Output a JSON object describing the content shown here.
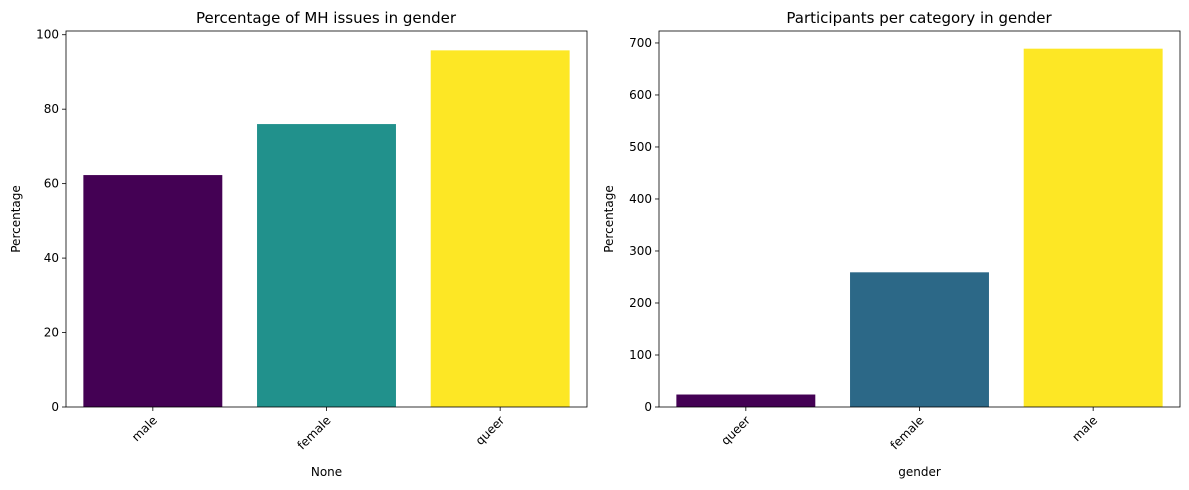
{
  "chart_data": [
    {
      "type": "bar",
      "title": "Percentage of MH issues in gender",
      "xlabel": "None",
      "ylabel": "Percentage",
      "categories": [
        "male",
        "female",
        "queer"
      ],
      "values": [
        62.3,
        76.0,
        95.8
      ],
      "colors": [
        "#440154",
        "#21918c",
        "#fde725"
      ],
      "ylim": [
        0,
        101
      ],
      "yticks": [
        "0",
        "20",
        "40",
        "60",
        "80",
        "100"
      ],
      "ytick_values": [
        0,
        20,
        40,
        60,
        80,
        100
      ],
      "grid": false
    },
    {
      "type": "bar",
      "title": "Participants per category in gender",
      "xlabel": "gender",
      "ylabel": "Percentage",
      "categories": [
        "queer",
        "female",
        "male"
      ],
      "values": [
        24,
        259,
        689
      ],
      "colors": [
        "#440154",
        "#2c6887",
        "#fde725"
      ],
      "ylim": [
        0,
        723
      ],
      "yticks": [
        "0",
        "100",
        "200",
        "300",
        "400",
        "500",
        "600",
        "700"
      ],
      "ytick_values": [
        0,
        100,
        200,
        300,
        400,
        500,
        600,
        700
      ],
      "grid": false
    }
  ]
}
